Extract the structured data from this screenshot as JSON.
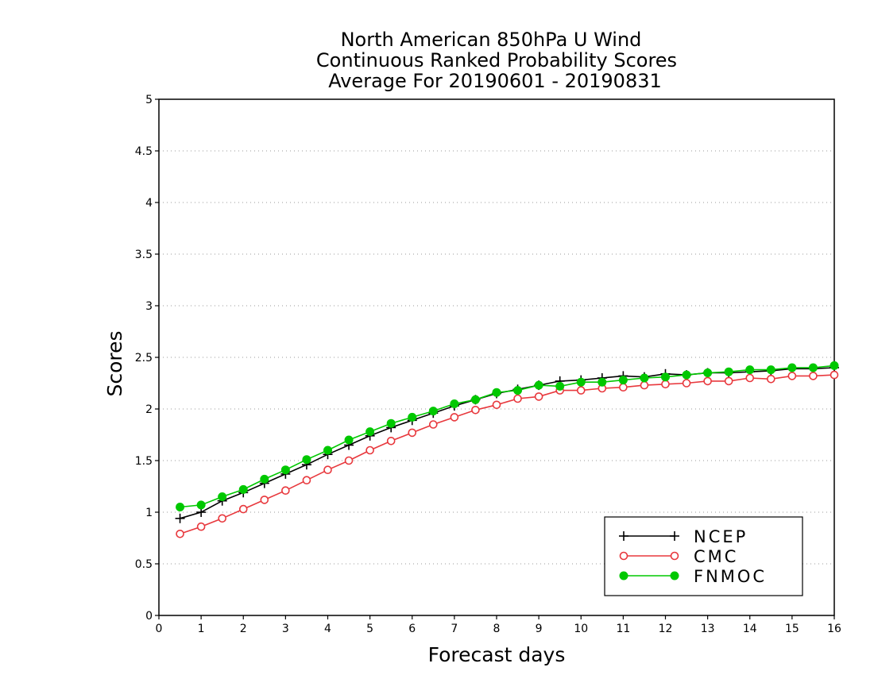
{
  "chart_data": {
    "type": "line",
    "title_lines": [
      "North American 850hPa U Wind",
      "Continuous Ranked Probability Scores",
      "Average For 20190601 - 20190831"
    ],
    "xlabel": "Forecast days",
    "ylabel": "Scores",
    "xlim": [
      0,
      16
    ],
    "ylim": [
      0,
      5
    ],
    "x_ticks": [
      "0",
      "1",
      "2",
      "3",
      "4",
      "5",
      "6",
      "7",
      "8",
      "9",
      "10",
      "11",
      "12",
      "13",
      "14",
      "15",
      "16"
    ],
    "y_ticks": [
      "0",
      "0.5",
      "1",
      "1.5",
      "2",
      "2.5",
      "3",
      "3.5",
      "4",
      "4.5",
      "5"
    ],
    "grid": "horizontal dotted",
    "legend_position": "bottom-right",
    "x": [
      0.5,
      1,
      1.5,
      2,
      2.5,
      3,
      3.5,
      4,
      4.5,
      5,
      5.5,
      6,
      6.5,
      7,
      7.5,
      8,
      8.5,
      9,
      9.5,
      10,
      10.5,
      11,
      11.5,
      12,
      12.5,
      13,
      13.5,
      14,
      14.5,
      15,
      15.5,
      16
    ],
    "series": [
      {
        "name": "NCEP",
        "color": "#000000",
        "marker": "plus",
        "values": [
          0.94,
          1.0,
          1.11,
          1.19,
          1.28,
          1.37,
          1.46,
          1.56,
          1.65,
          1.74,
          1.82,
          1.89,
          1.96,
          2.03,
          2.09,
          2.15,
          2.19,
          2.23,
          2.27,
          2.28,
          2.3,
          2.32,
          2.31,
          2.34,
          2.33,
          2.35,
          2.35,
          2.36,
          2.37,
          2.39,
          2.39,
          2.4
        ]
      },
      {
        "name": "CMC",
        "color": "#e8383d",
        "marker": "open-circle",
        "values": [
          0.79,
          0.86,
          0.94,
          1.03,
          1.12,
          1.21,
          1.31,
          1.41,
          1.5,
          1.6,
          1.69,
          1.77,
          1.85,
          1.92,
          1.99,
          2.04,
          2.1,
          2.12,
          2.18,
          2.18,
          2.2,
          2.21,
          2.23,
          2.24,
          2.25,
          2.27,
          2.27,
          2.3,
          2.29,
          2.32,
          2.32,
          2.33
        ]
      },
      {
        "name": "FNMOC",
        "color": "#00c800",
        "marker": "filled-circle",
        "values": [
          1.05,
          1.07,
          1.15,
          1.22,
          1.32,
          1.41,
          1.51,
          1.6,
          1.7,
          1.78,
          1.86,
          1.92,
          1.98,
          2.05,
          2.09,
          2.16,
          2.18,
          2.23,
          2.22,
          2.26,
          2.26,
          2.28,
          2.3,
          2.31,
          2.33,
          2.35,
          2.36,
          2.38,
          2.38,
          2.4,
          2.4,
          2.42
        ]
      }
    ]
  }
}
